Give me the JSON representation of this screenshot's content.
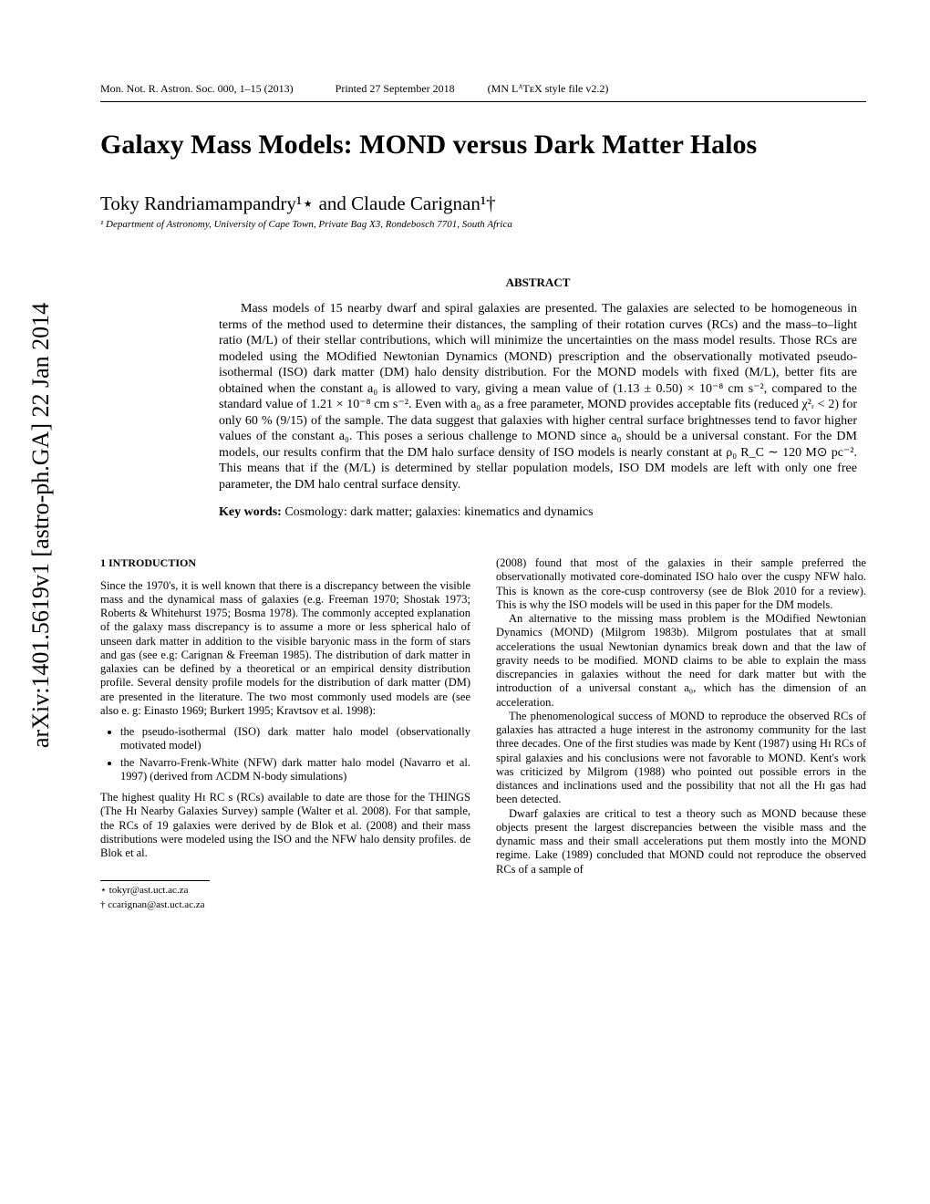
{
  "arxiv": "arXiv:1401.5619v1  [astro-ph.GA]  22 Jan 2014",
  "journal": {
    "left": "Mon. Not. R. Astron. Soc. 000, 1–15 (2013)",
    "middle": "Printed 27 September 2018",
    "right": "(MN LᴬTᴇX style file v2.2)"
  },
  "title": "Galaxy Mass Models: MOND versus Dark Matter Halos",
  "authors": "Toky Randriamampandry¹⋆ and Claude Carignan¹†",
  "affiliation": "¹ Department of Astronomy, University of Cape Town, Private Bag X3, Rondebosch 7701, South Africa",
  "abstract_heading": "ABSTRACT",
  "abstract_body": "Mass models of 15 nearby dwarf and spiral galaxies are presented. The galaxies are selected to be homogeneous in terms of the method used to determine their distances, the sampling of their rotation curves (RCs) and the mass–to–light ratio (M/L) of their stellar contributions, which will minimize the uncertainties on the mass model results. Those RCs are modeled using the MOdified Newtonian Dynamics (MOND) prescription and the observationally motivated pseudo-isothermal (ISO) dark matter (DM) halo density distribution. For the MOND models with fixed (M/L), better fits are obtained when the constant a₀ is allowed to vary, giving a mean value of (1.13 ± 0.50) × 10⁻⁸ cm s⁻², compared to the standard value of 1.21 × 10⁻⁸ cm s⁻². Even with a₀ as a free parameter, MOND provides acceptable fits (reduced χ²ᵣ < 2) for only 60 % (9/15) of the sample. The data suggest that galaxies with higher central surface brightnesses tend to favor higher values of the constant a₀. This poses a serious challenge to MOND since a₀ should be a universal constant. For the DM models, our results confirm that the DM halo surface density of ISO models is nearly constant at ρ₀ R_C ∼ 120 M⊙ pc⁻². This means that if the (M/L) is determined by stellar population models, ISO DM models are left with only one free parameter, the DM halo central surface density.",
  "keywords_label": "Key words:",
  "keywords_text": "Cosmology: dark matter; galaxies: kinematics and dynamics",
  "section1_heading": "1   INTRODUCTION",
  "col_left": {
    "p1": "Since the 1970's, it is well known that there is a discrepancy between the visible mass and the dynamical mass of galaxies (e.g. Freeman 1970; Shostak 1973; Roberts & Whitehurst 1975; Bosma 1978). The commonly accepted explanation of the galaxy mass discrepancy is to assume a more or less spherical halo of unseen dark matter in addition to the visible baryonic mass in the form of stars and gas (see e.g: Carignan & Freeman 1985). The distribution of dark matter in galaxies can be defined by a theoretical or an empirical density distribution profile. Several density profile models for the distribution of dark matter (DM) are presented in the literature. The two most commonly used models are (see also e. g: Einasto 1969; Burkert 1995; Kravtsov et al. 1998):",
    "bullet1": "the pseudo-isothermal (ISO) dark matter halo model (observationally motivated model)",
    "bullet2": "the Navarro-Frenk-White (NFW) dark matter halo model (Navarro et al. 1997) (derived from ΛCDM N-body simulations)",
    "p2": "The highest quality Hɪ RC s (RCs) available to date are those for the THINGS (The Hɪ Nearby Galaxies Survey) sample (Walter et al. 2008). For that sample, the RCs of 19 galaxies were derived by de Blok et al. (2008) and their mass distributions were modeled using the ISO and the NFW halo density profiles. de Blok et al."
  },
  "col_right": {
    "p1": "(2008) found that most of the galaxies in their sample preferred the observationally motivated core-dominated ISO halo over the cuspy NFW halo. This is known as the core-cusp controversy (see de Blok 2010 for a review). This is why the ISO models will be used in this paper for the DM models.",
    "p2": "An alternative to the missing mass problem is the MOdified Newtonian Dynamics (MOND) (Milgrom 1983b). Milgrom postulates that at small accelerations the usual Newtonian dynamics break down and that the law of gravity needs to be modified. MOND claims to be able to explain the mass discrepancies in galaxies without the need for dark matter but with the introduction of a universal constant a₀, which has the dimension of an acceleration.",
    "p3": "The phenomenological success of MOND to reproduce the observed RCs of galaxies has attracted a huge interest in the astronomy community for the last three decades. One of the first studies was made by Kent (1987) using Hɪ RCs of spiral galaxies and his conclusions were not favorable to MOND. Kent's work was criticized by Milgrom (1988) who pointed out possible errors in the distances and inclinations used and the possibility that not all the Hɪ gas had been detected.",
    "p4": "Dwarf galaxies are critical to test a theory such as MOND because these objects present the largest discrepancies between the visible mass and the dynamic mass and their small accelerations put them mostly into the MOND regime. Lake (1989) concluded that MOND could not reproduce the observed RCs of a sample of"
  },
  "footnotes": {
    "f1": "⋆  tokyr@ast.uct.ac.za",
    "f2": "†  ccarignan@ast.uct.ac.za"
  }
}
